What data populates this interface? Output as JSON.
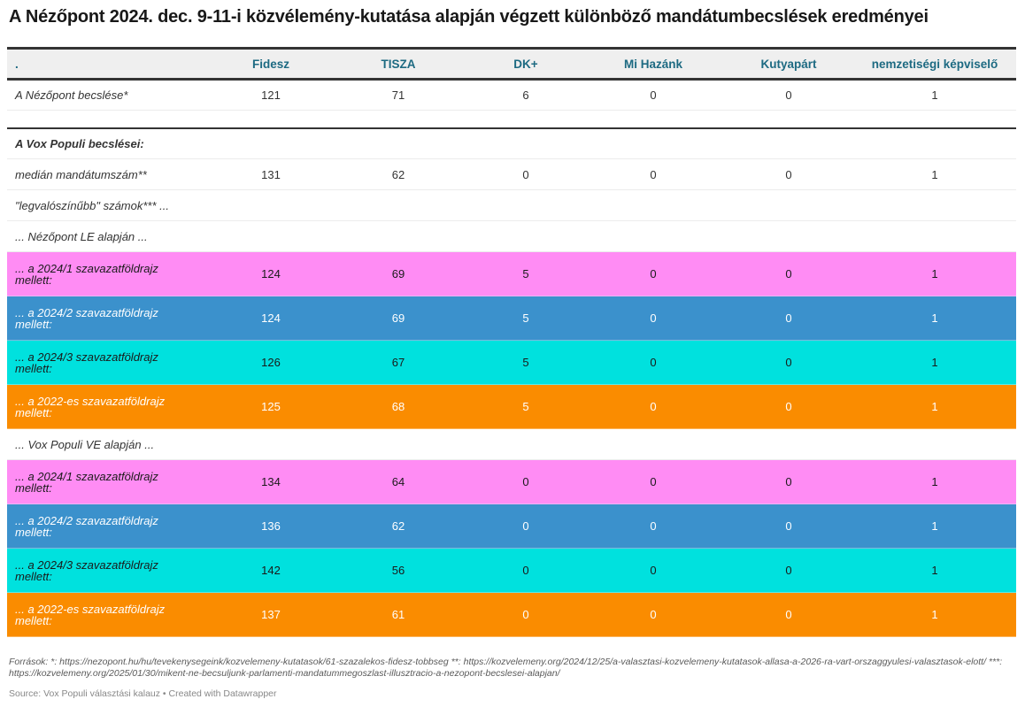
{
  "title": "A Nézőpont 2024. dec. 9-11-i közvélemény-kutatása alapján végzett különböző mandátumbecslések eredményei",
  "columns": [
    ".",
    "Fidesz",
    "TISZA",
    "DK+",
    "Mi Hazánk",
    "Kutyapárt",
    "nemzetiségi képviselő"
  ],
  "colors": {
    "pink": "#ff8cf4",
    "blue": "#3b91cc",
    "cyan": "#00e1de",
    "orange": "#fa8c00",
    "header_text": "#1d6a82"
  },
  "rows": {
    "nezopont": {
      "label": "A Nézőpont becslése*",
      "values": [
        "121",
        "71",
        "6",
        "0",
        "0",
        "1"
      ]
    },
    "vox_heading": {
      "label": "A Vox Populi becslései:"
    },
    "median": {
      "label": "medián mandátumszám**",
      "values": [
        "131",
        "62",
        "0",
        "0",
        "0",
        "1"
      ]
    },
    "likely": {
      "label": "\"legvalószínűbb\" számok*** ..."
    },
    "le_heading": {
      "label": "... Nézőpont LE alapján ..."
    },
    "le_2024_1": {
      "label": "... a 2024/1 szavazatföldrajz mellett:",
      "values": [
        "124",
        "69",
        "5",
        "0",
        "0",
        "1"
      ]
    },
    "le_2024_2": {
      "label": "... a 2024/2 szavazatföldrajz mellett:",
      "values": [
        "124",
        "69",
        "5",
        "0",
        "0",
        "1"
      ]
    },
    "le_2024_3": {
      "label": "... a 2024/3 szavazatföldrajz mellett:",
      "values": [
        "126",
        "67",
        "5",
        "0",
        "0",
        "1"
      ]
    },
    "le_2022": {
      "label": "... a 2022-es szavazatföldrajz mellett:",
      "values": [
        "125",
        "68",
        "5",
        "0",
        "0",
        "1"
      ]
    },
    "ve_heading": {
      "label": "... Vox Populi VE alapján ..."
    },
    "ve_2024_1": {
      "label": "... a 2024/1 szavazatföldrajz mellett:",
      "values": [
        "134",
        "64",
        "0",
        "0",
        "0",
        "1"
      ]
    },
    "ve_2024_2": {
      "label": "... a 2024/2 szavazatföldrajz mellett:",
      "values": [
        "136",
        "62",
        "0",
        "0",
        "0",
        "1"
      ]
    },
    "ve_2024_3": {
      "label": "... a 2024/3 szavazatföldrajz mellett:",
      "values": [
        "142",
        "56",
        "0",
        "0",
        "0",
        "1"
      ]
    },
    "ve_2022": {
      "label": "... a 2022-es szavazatföldrajz mellett:",
      "values": [
        "137",
        "61",
        "0",
        "0",
        "0",
        "1"
      ]
    }
  },
  "footnote": "Források: *: https://nezopont.hu/hu/tevekenysegeink/kozvelemeny-kutatasok/61-szazalekos-fidesz-tobbseg **: https://kozvelemeny.org/2024/12/25/a-valasztasi-kozvelemeny-kutatasok-allasa-a-2026-ra-vart-orszaggyulesi-valasztasok-elott/ ***: https://kozvelemeny.org/2025/01/30/mikent-ne-becsuljunk-parlamenti-mandatummegoszlast-illusztracio-a-nezopont-becslesei-alapjan/",
  "source": "Source: Vox Populi választási kalauz • Created with Datawrapper"
}
